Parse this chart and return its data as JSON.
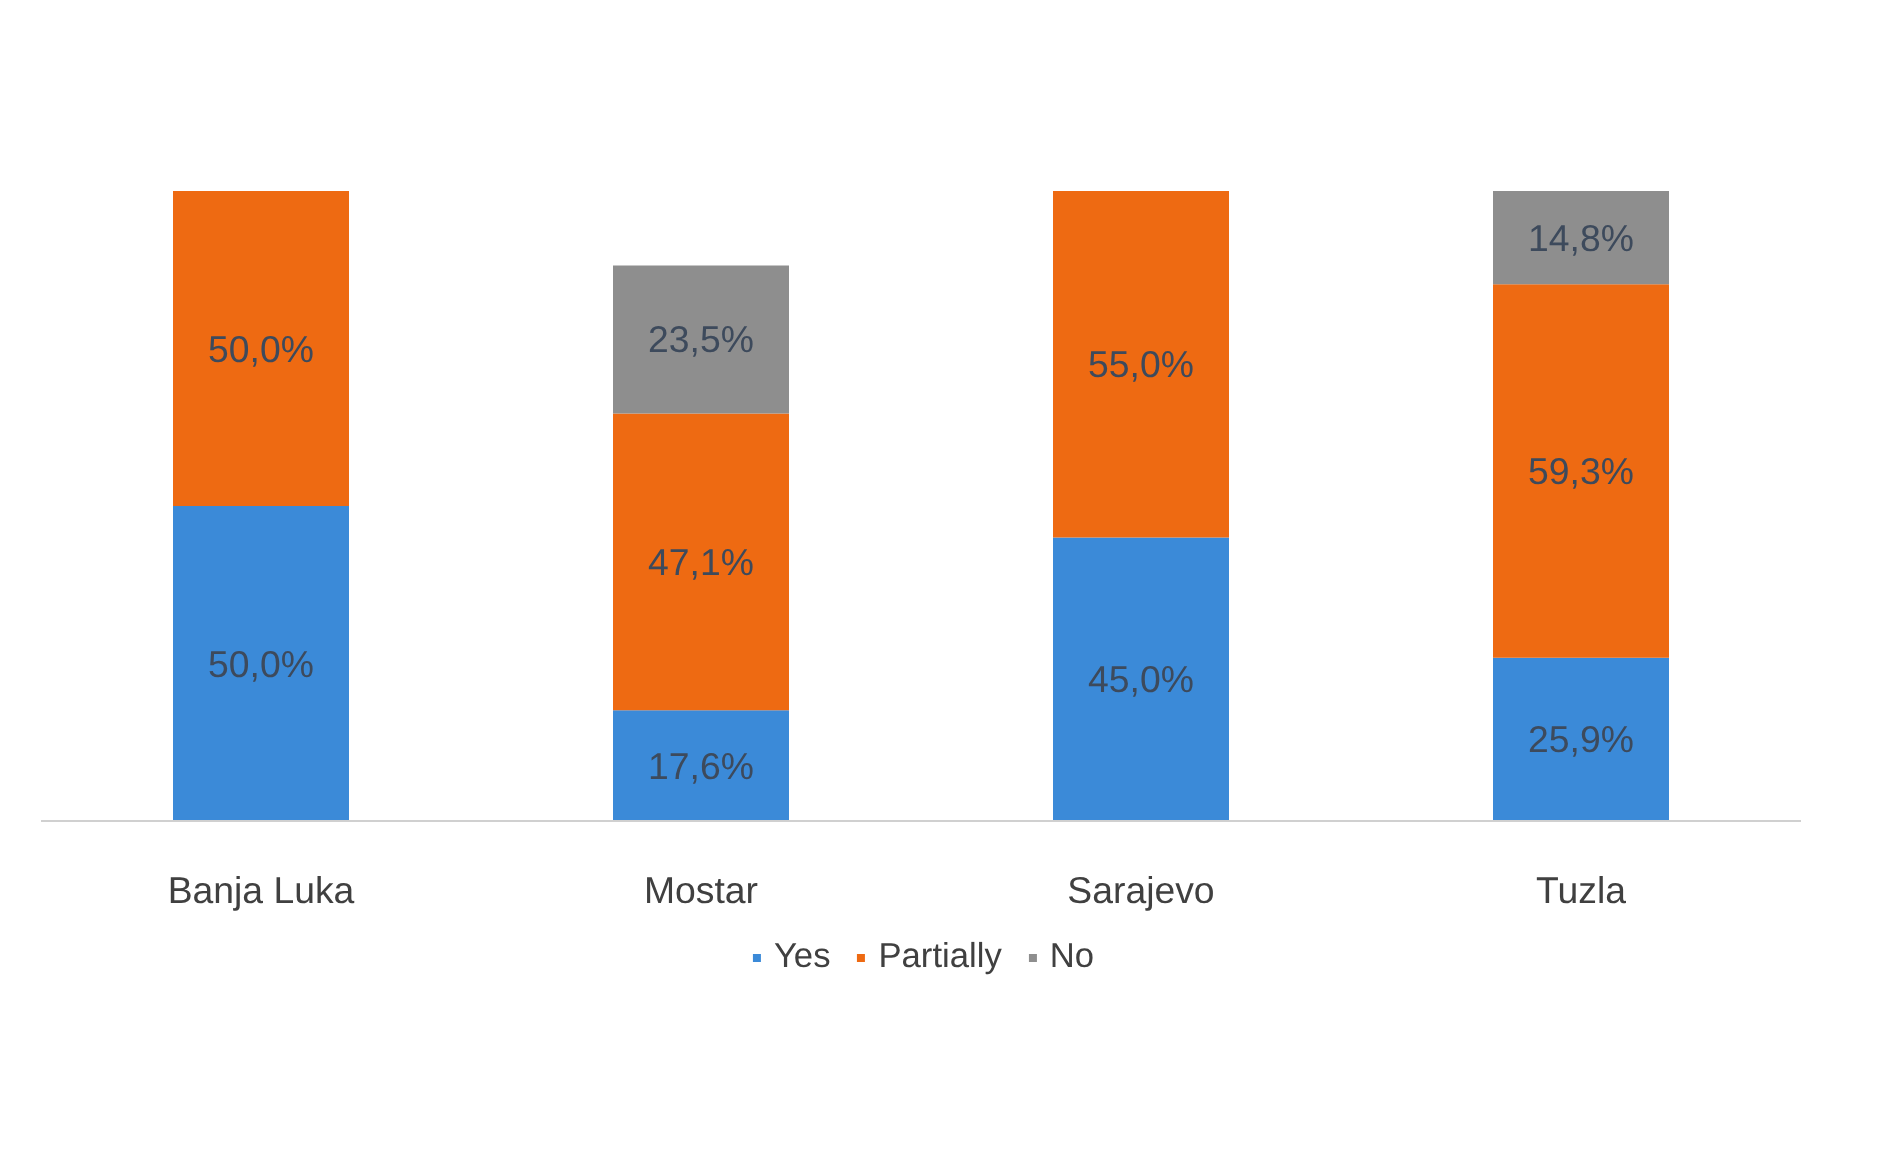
{
  "chart_data": {
    "type": "bar",
    "stacked": true,
    "legend": "bottom",
    "categories": [
      "Banja Luka",
      "Mostar",
      "Sarajevo",
      "Tuzla"
    ],
    "series": [
      {
        "name": "Yes",
        "color": "#3b8ad8",
        "values": [
          50.0,
          17.6,
          45.0,
          25.9
        ],
        "value_labels": [
          "50,0%",
          "17,6%",
          "45,0%",
          "25,9%"
        ]
      },
      {
        "name": "Partially",
        "color": "#ee6a12",
        "values": [
          50.0,
          47.1,
          55.0,
          59.3
        ],
        "value_labels": [
          "50,0%",
          "47,1%",
          "55,0%",
          "59,3%"
        ]
      },
      {
        "name": "No",
        "color": "#8e8e8e",
        "values": [
          null,
          23.5,
          null,
          14.8
        ],
        "value_labels": [
          null,
          "23,5%",
          null,
          "14,8%"
        ]
      }
    ]
  }
}
